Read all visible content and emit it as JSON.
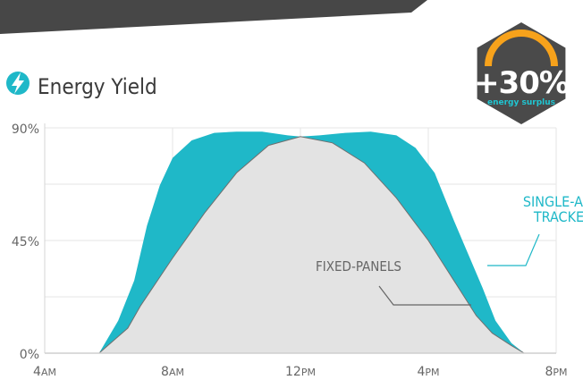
{
  "header": {
    "title": "Energy Yield",
    "title_icon": "lightning-bolt-icon",
    "accent_color": "#1fb8c8"
  },
  "badge": {
    "value": "+30%",
    "caption": "energy surplus",
    "shape": "hexagon",
    "fill_color": "#4a4a4a",
    "arc_color": "#f7a21b",
    "caption_color": "#1fc6d2"
  },
  "chart_data": {
    "type": "area",
    "y_tick_labels": [
      "90%",
      "45%",
      "0%"
    ],
    "x_tick_labels": [
      {
        "num": "4",
        "sfx": "AM"
      },
      {
        "num": "8",
        "sfx": "AM"
      },
      {
        "num": "12",
        "sfx": "PM"
      },
      {
        "num": "4",
        "sfx": "PM"
      },
      {
        "num": "8",
        "sfx": "PM"
      }
    ],
    "x_range_hours": [
      4,
      20
    ],
    "ylim": [
      0,
      90
    ],
    "grid": true,
    "annotations": [
      {
        "text": "SINGLE-AXIS TRACKER",
        "lines": [
          "SINGLE-AXIS",
          "TRACKER"
        ],
        "series": "single-axis"
      },
      {
        "text": "FIXED-PANELS",
        "lines": [
          "FIXED-PANELS"
        ],
        "series": "fixed"
      }
    ],
    "series": [
      {
        "key": "single-axis",
        "color": "#1fb8c8",
        "points": [
          [
            5.7,
            0
          ],
          [
            6.3,
            13
          ],
          [
            6.8,
            29
          ],
          [
            7.2,
            51
          ],
          [
            7.6,
            67
          ],
          [
            8.0,
            78
          ],
          [
            8.6,
            85
          ],
          [
            9.3,
            88
          ],
          [
            10.0,
            88.5
          ],
          [
            10.8,
            88.5
          ],
          [
            11.6,
            87
          ],
          [
            12.0,
            86.5
          ],
          [
            12.6,
            87
          ],
          [
            13.4,
            88
          ],
          [
            14.2,
            88.5
          ],
          [
            15.0,
            87
          ],
          [
            15.6,
            82
          ],
          [
            16.2,
            72
          ],
          [
            16.8,
            53
          ],
          [
            17.3,
            38
          ],
          [
            17.7,
            26
          ],
          [
            18.1,
            13
          ],
          [
            18.6,
            4
          ],
          [
            19.0,
            0
          ]
        ]
      },
      {
        "key": "fixed",
        "color": "#e3e3e3",
        "points": [
          [
            5.7,
            0
          ],
          [
            6.6,
            10
          ],
          [
            7.0,
            19
          ],
          [
            8.0,
            38
          ],
          [
            9.0,
            56
          ],
          [
            10.0,
            72
          ],
          [
            11.0,
            83
          ],
          [
            12.0,
            86.5
          ],
          [
            13.0,
            84
          ],
          [
            14.0,
            76
          ],
          [
            15.0,
            62
          ],
          [
            16.0,
            45
          ],
          [
            16.5,
            35
          ],
          [
            17.0,
            25
          ],
          [
            17.5,
            15
          ],
          [
            18.0,
            8
          ],
          [
            18.6,
            3
          ],
          [
            19.0,
            0
          ]
        ]
      }
    ]
  }
}
